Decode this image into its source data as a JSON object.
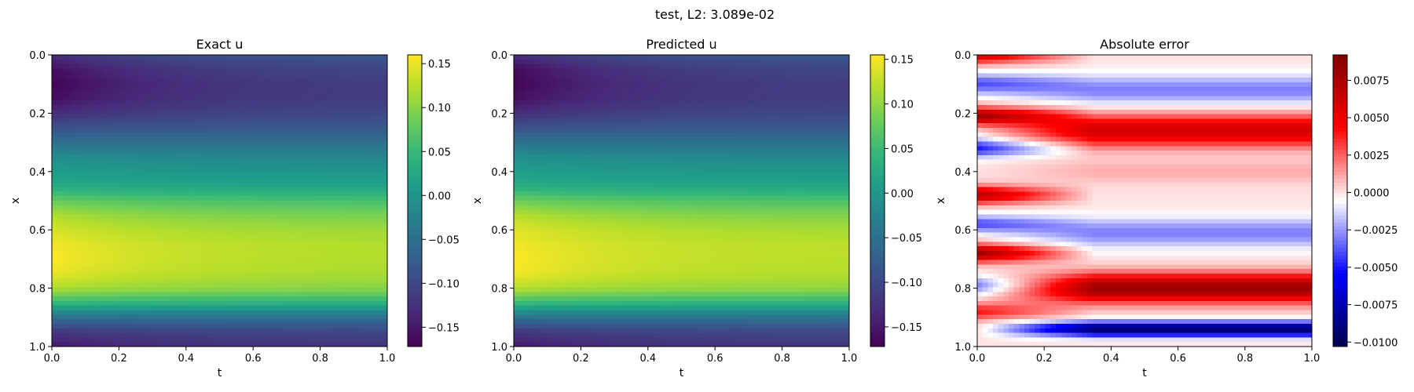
{
  "figure": {
    "suptitle": "test, L2: 3.089e-02"
  },
  "colors": {
    "axis": "#000000",
    "background": "#ffffff",
    "viridis": [
      "#440154",
      "#482878",
      "#3e4989",
      "#31688e",
      "#26828e",
      "#1f9e89",
      "#35b779",
      "#6ece58",
      "#b5de2b",
      "#fde725"
    ],
    "seismic": [
      "#00004c",
      "#0000ff",
      "#ffffff",
      "#ff0000",
      "#7f0000"
    ]
  },
  "chart_data": [
    {
      "type": "heatmap",
      "title": "Exact u",
      "xlabel": "t",
      "ylabel": "x",
      "xlim": [
        0.0,
        1.0
      ],
      "ylim": [
        1.0,
        0.0
      ],
      "xticks": [
        "0.0",
        "0.2",
        "0.4",
        "0.6",
        "0.8",
        "1.0"
      ],
      "yticks": [
        "0.0",
        "0.2",
        "0.4",
        "0.6",
        "0.8",
        "1.0"
      ],
      "colormap": "viridis",
      "colorbar": {
        "range": [
          -0.172,
          0.16
        ],
        "ticks": [
          0.15,
          0.1,
          0.05,
          0.0,
          -0.05,
          -0.1,
          -0.15
        ],
        "tick_labels": [
          "0.15",
          "0.10",
          "0.05",
          "0.00",
          "−0.05",
          "−0.10",
          "−0.15"
        ]
      },
      "profile_x": [
        0.0,
        0.05,
        0.1,
        0.15,
        0.2,
        0.25,
        0.3,
        0.35,
        0.4,
        0.45,
        0.5,
        0.55,
        0.6,
        0.65,
        0.7,
        0.75,
        0.8,
        0.85,
        0.9,
        0.95,
        1.0
      ],
      "profile_t0": [
        -0.13,
        -0.16,
        -0.17,
        -0.16,
        -0.13,
        -0.09,
        -0.05,
        -0.01,
        0.01,
        0.03,
        0.08,
        0.12,
        0.14,
        0.155,
        0.16,
        0.15,
        0.12,
        0.05,
        -0.05,
        -0.12,
        -0.15
      ],
      "profile_t1": [
        -0.08,
        -0.1,
        -0.11,
        -0.11,
        -0.1,
        -0.08,
        -0.05,
        -0.02,
        0.0,
        0.02,
        0.06,
        0.09,
        0.11,
        0.12,
        0.12,
        0.115,
        0.1,
        0.04,
        -0.05,
        -0.1,
        -0.12
      ],
      "decay_rate": 3.0
    },
    {
      "type": "heatmap",
      "title": "Predicted u",
      "xlabel": "t",
      "ylabel": "x",
      "xlim": [
        0.0,
        1.0
      ],
      "ylim": [
        1.0,
        0.0
      ],
      "xticks": [
        "0.0",
        "0.2",
        "0.4",
        "0.6",
        "0.8",
        "1.0"
      ],
      "yticks": [
        "0.0",
        "0.2",
        "0.4",
        "0.6",
        "0.8",
        "1.0"
      ],
      "colormap": "viridis",
      "colorbar": {
        "range": [
          -0.172,
          0.155
        ],
        "ticks": [
          0.15,
          0.1,
          0.05,
          0.0,
          -0.05,
          -0.1,
          -0.15
        ],
        "tick_labels": [
          "0.15",
          "0.10",
          "0.05",
          "0.00",
          "−0.05",
          "−0.10",
          "−0.15"
        ]
      },
      "profile_x": [
        0.0,
        0.05,
        0.1,
        0.15,
        0.2,
        0.25,
        0.3,
        0.35,
        0.4,
        0.45,
        0.5,
        0.55,
        0.6,
        0.65,
        0.7,
        0.75,
        0.8,
        0.85,
        0.9,
        0.95,
        1.0
      ],
      "profile_t0": [
        -0.13,
        -0.165,
        -0.17,
        -0.16,
        -0.13,
        -0.09,
        -0.05,
        -0.01,
        0.01,
        0.03,
        0.08,
        0.12,
        0.14,
        0.15,
        0.155,
        0.15,
        0.12,
        0.05,
        -0.05,
        -0.12,
        -0.15
      ],
      "profile_t1": [
        -0.08,
        -0.1,
        -0.11,
        -0.11,
        -0.1,
        -0.08,
        -0.05,
        -0.02,
        0.0,
        0.02,
        0.06,
        0.09,
        0.11,
        0.12,
        0.12,
        0.115,
        0.1,
        0.04,
        -0.05,
        -0.1,
        -0.12
      ],
      "decay_rate": 3.0
    },
    {
      "type": "heatmap",
      "title": "Absolute error",
      "xlabel": "t",
      "ylabel": "x",
      "xlim": [
        0.0,
        1.0
      ],
      "ylim": [
        1.0,
        0.0
      ],
      "xticks": [
        "0.0",
        "0.2",
        "0.4",
        "0.6",
        "0.8",
        "1.0"
      ],
      "yticks": [
        "0.0",
        "0.2",
        "0.4",
        "0.6",
        "0.8",
        "1.0"
      ],
      "colormap": "seismic",
      "colorbar": {
        "range": [
          -0.0103,
          0.0092
        ],
        "ticks": [
          0.0075,
          0.005,
          0.0025,
          0.0,
          -0.0025,
          -0.005,
          -0.0075,
          -0.01
        ],
        "tick_labels": [
          "0.0075",
          "0.0050",
          "0.0025",
          "0.0000",
          "−0.0025",
          "−0.0050",
          "−0.0075",
          "−0.0100"
        ]
      },
      "bands": [
        {
          "x": 0.12,
          "width": 0.05,
          "value": -0.003
        },
        {
          "x": 0.26,
          "width": 0.055,
          "value": 0.006
        },
        {
          "x": 0.4,
          "width": 0.04,
          "value": 0.001
        },
        {
          "x": 0.61,
          "width": 0.05,
          "value": -0.003
        },
        {
          "x": 0.8,
          "width": 0.05,
          "value": 0.008
        },
        {
          "x": 0.94,
          "width": 0.025,
          "value": -0.0095
        }
      ],
      "early_bands": [
        {
          "x": 0.0,
          "width": 0.03,
          "value": 0.006
        },
        {
          "x": 0.1,
          "width": 0.035,
          "value": -0.004
        },
        {
          "x": 0.21,
          "width": 0.03,
          "value": 0.008
        },
        {
          "x": 0.32,
          "width": 0.03,
          "value": -0.005
        },
        {
          "x": 0.48,
          "width": 0.03,
          "value": 0.007
        },
        {
          "x": 0.58,
          "width": 0.03,
          "value": -0.004
        },
        {
          "x": 0.68,
          "width": 0.03,
          "value": 0.008
        },
        {
          "x": 0.79,
          "width": 0.03,
          "value": -0.003
        },
        {
          "x": 0.88,
          "width": 0.03,
          "value": 0.004
        }
      ]
    }
  ]
}
